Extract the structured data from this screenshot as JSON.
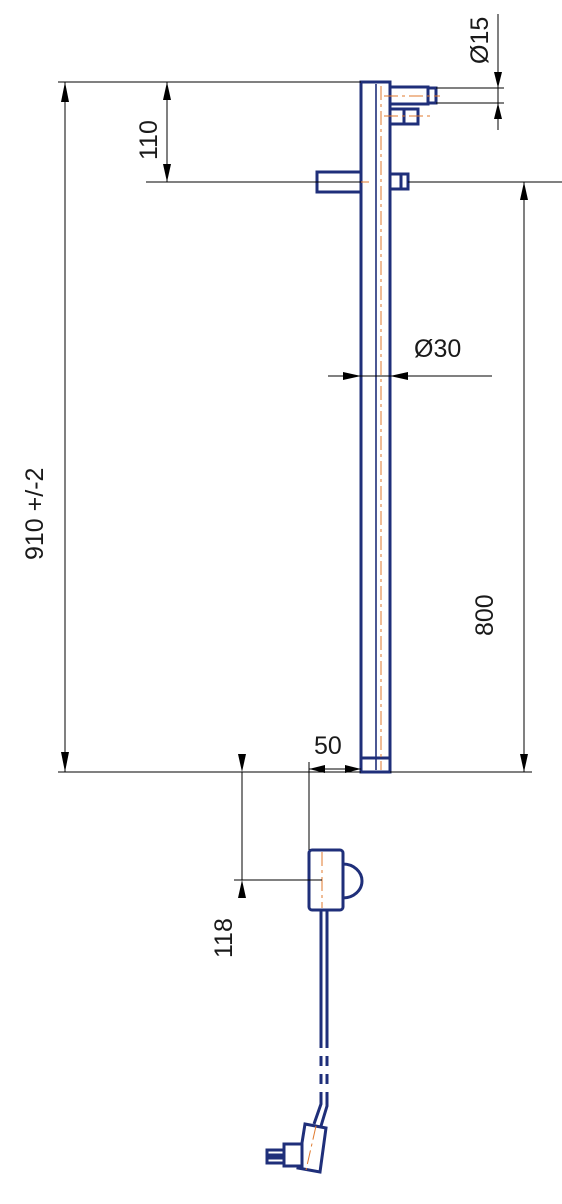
{
  "colors": {
    "drawing_stroke": "#1f2f7a",
    "centerline": "#e07a2e",
    "dimension": "#000000",
    "background": "#ffffff"
  },
  "dimensions": {
    "total_height": "910  +/-2",
    "top_offset": "110",
    "pipe_diameter": "Ø30",
    "connector_diameter": "Ø15",
    "connector_spacing": "800",
    "heater_offset": "50",
    "heater_height": "118"
  }
}
